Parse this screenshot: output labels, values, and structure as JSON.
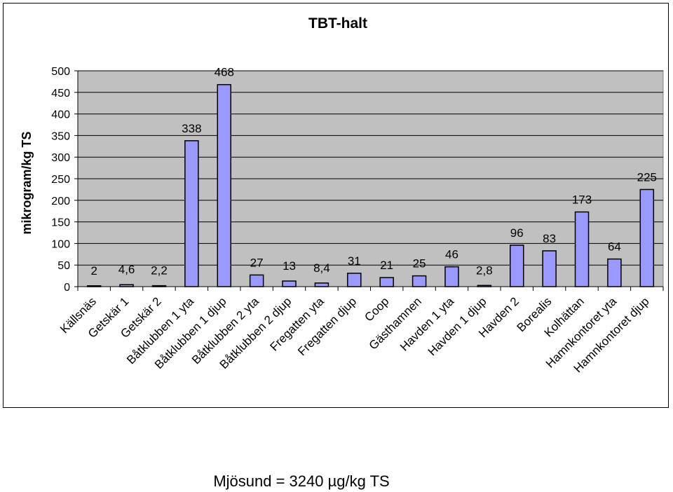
{
  "chart_data": {
    "type": "bar",
    "title": "TBT-halt",
    "ylabel": "mikrogram/kg TS",
    "xlabel": "",
    "ylim": [
      0,
      500
    ],
    "yticks": [
      0,
      50,
      100,
      150,
      200,
      250,
      300,
      350,
      400,
      450,
      500
    ],
    "grid": true,
    "legend": "none",
    "colors": {
      "bar_fill": "#9999ff",
      "plot_bg": "#c0c0c0",
      "bar_stroke": "#000000"
    },
    "categories": [
      "Källsnäs",
      "Getskär 1",
      "Getskär 2",
      "Båtklubben 1 yta",
      "Båtklubben 1 djup",
      "Båtklubben 2 yta",
      "Båtklubben 2 djup",
      "Fregatten yta",
      "Fregatten djup",
      "Coop",
      "Gästhamnen",
      "Havden 1 yta",
      "Havden 1 djup",
      "Havden 2",
      "Borealis",
      "Kolhättan",
      "Hamnkontoret yta",
      "Hamnkontoret djup"
    ],
    "values": [
      2,
      4.6,
      2.2,
      338,
      468,
      27,
      13,
      8.4,
      31,
      21,
      25,
      46,
      2.8,
      96,
      83,
      173,
      64,
      225
    ],
    "data_labels": [
      "2",
      "4,6",
      "2,2",
      "338",
      "468",
      "27",
      "13",
      "8,4",
      "31",
      "21",
      "25",
      "46",
      "2,8",
      "96",
      "83",
      "173",
      "64",
      "225"
    ]
  },
  "footnote": "Mjösund = 3240 µg/kg TS"
}
